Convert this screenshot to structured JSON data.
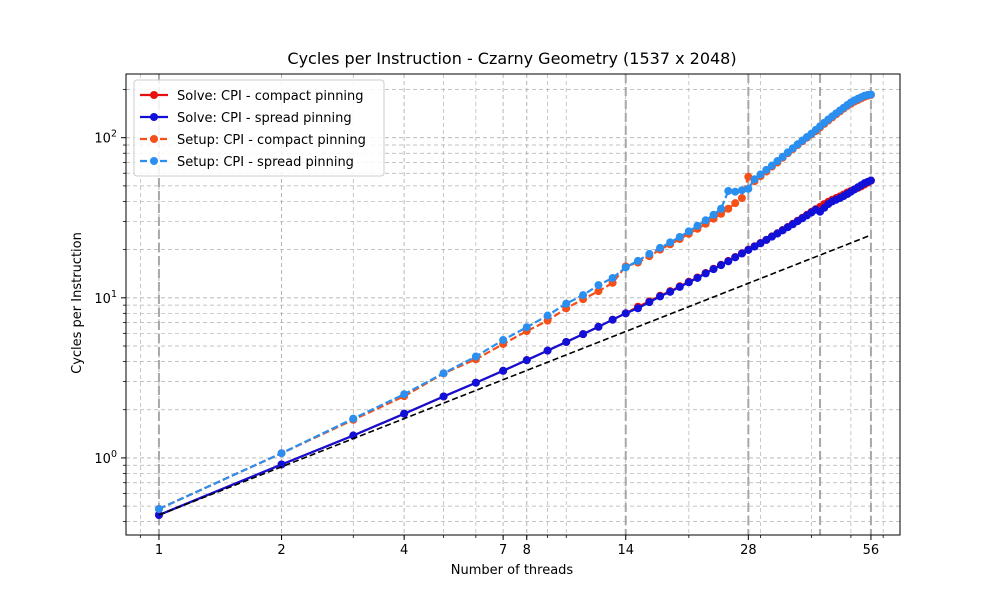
{
  "chart_data": {
    "type": "line",
    "title": "Cycles per Instruction - Czarny Geometry (1537 x 2048)",
    "xlabel": "Number of threads",
    "ylabel": "Cycles per Instruction",
    "xscale": "log",
    "yscale": "log",
    "xlim": [
      0.83,
      66
    ],
    "ylim": [
      0.33,
      250
    ],
    "xticks": [
      {
        "value": 1,
        "label": "1"
      },
      {
        "value": 2,
        "label": "2"
      },
      {
        "value": 4,
        "label": "4"
      },
      {
        "value": 7,
        "label": "7"
      },
      {
        "value": 8,
        "label": "8"
      },
      {
        "value": 14,
        "label": "14"
      },
      {
        "value": 28,
        "label": "28"
      },
      {
        "value": 56,
        "label": "56"
      }
    ],
    "yticks": [
      {
        "value": 1,
        "base": "10",
        "exp": "0"
      },
      {
        "value": 10,
        "base": "10",
        "exp": "1"
      },
      {
        "value": 100,
        "base": "10",
        "exp": "2"
      }
    ],
    "grid": true,
    "vlines": [
      1,
      14,
      28,
      42,
      56
    ],
    "legend_position": "top-left",
    "series": [
      {
        "name": "Solve: CPI - compact pinning",
        "color": "#e8100f",
        "dash": false,
        "x": [
          1,
          2,
          3,
          4,
          5,
          6,
          7,
          8,
          9,
          10,
          11,
          12,
          13,
          14,
          15,
          16,
          17,
          18,
          19,
          20,
          21,
          22,
          23,
          24,
          25,
          26,
          27,
          28,
          29,
          30,
          31,
          32,
          33,
          34,
          35,
          36,
          37,
          38,
          39,
          40,
          41,
          42,
          43,
          44,
          45,
          46,
          47,
          48,
          49,
          50,
          51,
          52,
          53,
          54,
          55,
          56
        ],
        "y": [
          0.44,
          0.91,
          1.38,
          1.89,
          2.42,
          2.95,
          3.5,
          4.08,
          4.68,
          5.3,
          5.93,
          6.59,
          7.3,
          8.0,
          8.8,
          9.5,
          10.3,
          11.0,
          11.8,
          12.6,
          13.4,
          14.3,
          15.2,
          16.1,
          17.0,
          18.0,
          19.0,
          20.0,
          21.0,
          22.0,
          23.0,
          24.2,
          25.3,
          26.5,
          27.7,
          29.0,
          30.3,
          31.6,
          33.0,
          34.4,
          35.8,
          37.0,
          38.5,
          39.8,
          41.0,
          42.0,
          43.0,
          44.2,
          45.5,
          46.5,
          47.6,
          48.6,
          49.7,
          51.0,
          52.5,
          54.0
        ]
      },
      {
        "name": "Solve: CPI - spread pinning",
        "color": "#1010d8",
        "dash": false,
        "x": [
          1,
          2,
          3,
          4,
          5,
          6,
          7,
          8,
          9,
          10,
          11,
          12,
          13,
          14,
          15,
          16,
          17,
          18,
          19,
          20,
          21,
          22,
          23,
          24,
          25,
          26,
          27,
          28,
          29,
          30,
          31,
          32,
          33,
          34,
          35,
          36,
          37,
          38,
          39,
          40,
          41,
          42,
          43,
          44,
          45,
          46,
          47,
          48,
          49,
          50,
          51,
          52,
          53,
          54,
          55,
          56
        ],
        "y": [
          0.44,
          0.91,
          1.38,
          1.89,
          2.42,
          2.95,
          3.5,
          4.08,
          4.68,
          5.3,
          5.93,
          6.59,
          7.3,
          8.0,
          8.6,
          9.4,
          10.2,
          10.9,
          11.7,
          12.5,
          13.3,
          14.2,
          15.1,
          16.0,
          16.9,
          17.9,
          18.9,
          19.9,
          20.9,
          21.9,
          23.0,
          24.1,
          25.2,
          26.4,
          27.6,
          28.8,
          30.1,
          31.4,
          32.7,
          34.1,
          35.5,
          34.5,
          36.5,
          38.5,
          40.0,
          41.0,
          42.0,
          43.2,
          44.5,
          46.0,
          47.5,
          49.0,
          50.5,
          52.0,
          53.0,
          54.0
        ]
      },
      {
        "name": "Setup: CPI - compact pinning",
        "color": "#f5501a",
        "dash": true,
        "x": [
          1,
          2,
          3,
          4,
          5,
          6,
          7,
          8,
          9,
          10,
          11,
          12,
          13,
          14,
          15,
          16,
          17,
          18,
          19,
          20,
          21,
          22,
          23,
          24,
          25,
          26,
          27,
          28,
          29,
          30,
          31,
          32,
          33,
          34,
          35,
          36,
          37,
          38,
          39,
          40,
          41,
          42,
          43,
          44,
          45,
          46,
          47,
          48,
          49,
          50,
          51,
          52,
          53,
          54,
          55,
          56
        ],
        "y": [
          0.48,
          1.07,
          1.73,
          2.43,
          3.37,
          4.13,
          5.15,
          6.2,
          7.2,
          8.6,
          9.8,
          11.0,
          12.4,
          15.7,
          16.6,
          18.2,
          20.0,
          21.6,
          23.3,
          25.1,
          27.0,
          29.0,
          31.2,
          33.5,
          36.0,
          39.0,
          42.0,
          57.0,
          53.5,
          57.5,
          61.5,
          66.0,
          70.0,
          75.0,
          80.0,
          85.0,
          90.0,
          95.0,
          100.0,
          105.0,
          110.0,
          116.0,
          122.0,
          128.0,
          134.0,
          140.0,
          146.0,
          152.0,
          158.0,
          163.0,
          168.0,
          172.0,
          176.0,
          180.0,
          183.0,
          185.0
        ]
      },
      {
        "name": "Setup: CPI - spread pinning",
        "color": "#2b8ff0",
        "dash": true,
        "x": [
          1,
          2,
          3,
          4,
          5,
          6,
          7,
          8,
          9,
          10,
          11,
          12,
          13,
          14,
          15,
          16,
          17,
          18,
          19,
          20,
          21,
          22,
          23,
          24,
          25,
          26,
          27,
          28,
          29,
          30,
          31,
          32,
          33,
          34,
          35,
          36,
          37,
          38,
          39,
          40,
          41,
          42,
          43,
          44,
          45,
          46,
          47,
          48,
          49,
          50,
          51,
          52,
          53,
          54,
          55,
          56
        ],
        "y": [
          0.48,
          1.07,
          1.76,
          2.5,
          3.38,
          4.3,
          5.45,
          6.55,
          7.75,
          9.2,
          10.4,
          12.0,
          13.3,
          15.5,
          17.0,
          18.8,
          20.5,
          22.2,
          24.0,
          26.0,
          28.2,
          30.5,
          33.0,
          36.0,
          46.5,
          46.0,
          47.0,
          48.0,
          55.0,
          59.0,
          63.0,
          67.0,
          71.5,
          76.0,
          81.0,
          86.0,
          91.0,
          96.0,
          101.0,
          106.0,
          112.0,
          118.0,
          124.0,
          130.0,
          136.0,
          142.0,
          148.0,
          154.0,
          160.0,
          166.0,
          171.0,
          175.0,
          179.0,
          183.0,
          185.0,
          186.0
        ]
      },
      {
        "name": "",
        "color": "#000000",
        "dash": true,
        "reference": true,
        "x": [
          1,
          56
        ],
        "y": [
          0.44,
          24.64
        ]
      }
    ]
  }
}
